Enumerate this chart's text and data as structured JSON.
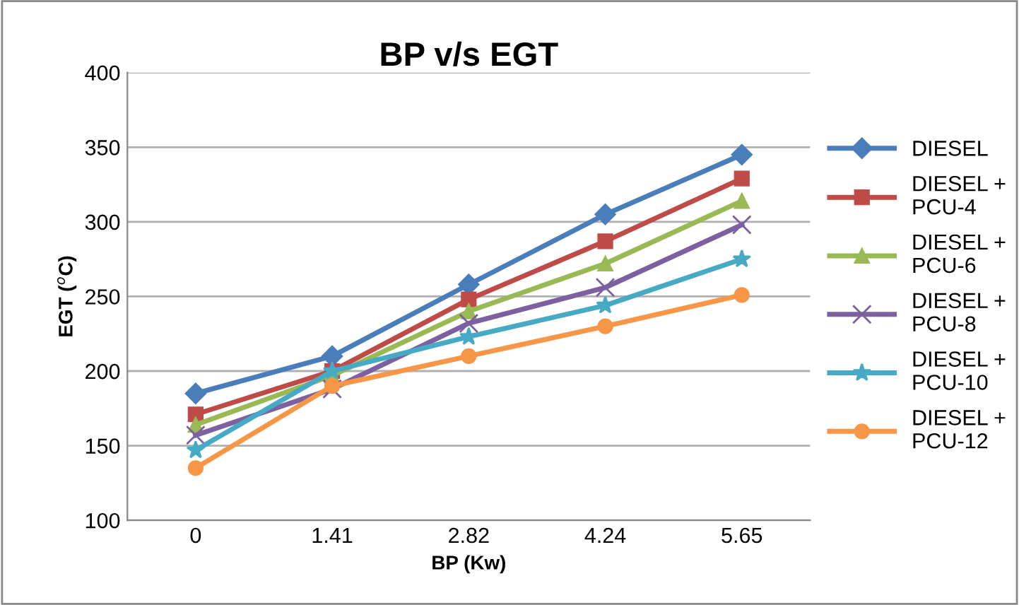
{
  "chart_data": {
    "type": "line",
    "title": "BP v/s EGT",
    "xlabel": "BP (Kw)",
    "ylabel": "EGT ($^{o}$C)",
    "categories": [
      "0",
      "1.41",
      "2.82",
      "4.24",
      "5.65"
    ],
    "series": [
      {
        "name": "DIESEL",
        "color": "#4a7ebb",
        "marker": "diamond",
        "values": [
          185,
          210,
          258,
          305,
          345
        ]
      },
      {
        "name": "DIESEL + PCU-4",
        "color": "#be4b48",
        "marker": "square",
        "values": [
          171,
          200,
          248,
          287,
          329
        ]
      },
      {
        "name": "DIESEL + PCU-6",
        "color": "#98b954",
        "marker": "triangle",
        "values": [
          164,
          197,
          240,
          272,
          314
        ]
      },
      {
        "name": "DIESEL + PCU-8",
        "color": "#7d60a0",
        "marker": "cross",
        "values": [
          157,
          188,
          232,
          256,
          298
        ]
      },
      {
        "name": "DIESEL + PCU-10",
        "color": "#46aac5",
        "marker": "star",
        "values": [
          147,
          200,
          223,
          244,
          275
        ]
      },
      {
        "name": "DIESEL + PCU-12",
        "color": "#f79646",
        "marker": "circle",
        "values": [
          135,
          190,
          210,
          230,
          251
        ]
      }
    ],
    "ylim": [
      100,
      400
    ],
    "yticks": [
      100,
      150,
      200,
      250,
      300,
      350,
      400
    ],
    "grid": "y",
    "legend": "right"
  }
}
